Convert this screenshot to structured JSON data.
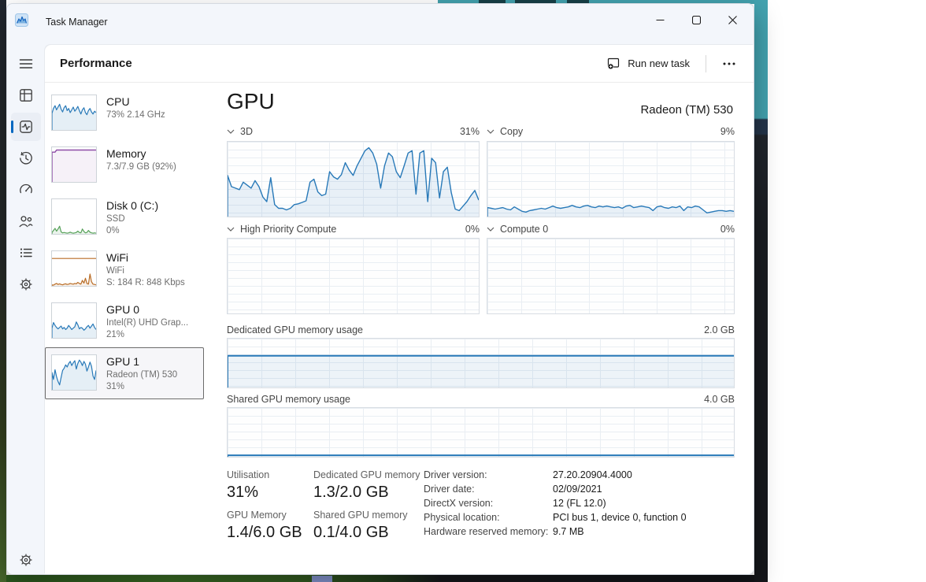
{
  "app": {
    "title": "Task Manager"
  },
  "header": {
    "title": "Performance",
    "run_new_task_label": "Run new task"
  },
  "sidebar": {
    "icons": [
      "hamburger-menu",
      "processes",
      "performance",
      "app-history",
      "startup-apps",
      "users",
      "details",
      "services",
      "settings"
    ]
  },
  "metrics": [
    {
      "title": "CPU",
      "lines": [
        "73% 2.14 GHz"
      ]
    },
    {
      "title": "Memory",
      "lines": [
        "7.3/7.9 GB (92%)"
      ]
    },
    {
      "title": "Disk 0 (C:)",
      "lines": [
        "SSD",
        "0%"
      ]
    },
    {
      "title": "WiFi",
      "lines": [
        "WiFi",
        "S: 184 R: 848 Kbps"
      ]
    },
    {
      "title": "GPU 0",
      "lines": [
        "Intel(R) UHD Grap...",
        "21%"
      ]
    },
    {
      "title": "GPU 1",
      "lines": [
        "Radeon (TM) 530",
        "31%"
      ],
      "selected": true
    }
  ],
  "gpu": {
    "title": "GPU",
    "device": "Radeon (TM) 530",
    "engine_charts": [
      {
        "label": "3D",
        "value": "31%"
      },
      {
        "label": "Copy",
        "value": "9%"
      },
      {
        "label": "High Priority Compute",
        "value": "0%"
      },
      {
        "label": "Compute 0",
        "value": "0%"
      }
    ],
    "memory_charts": [
      {
        "label": "Dedicated GPU memory usage",
        "scale": "2.0 GB"
      },
      {
        "label": "Shared GPU memory usage",
        "scale": "4.0 GB"
      }
    ],
    "stats": [
      {
        "label": "Utilisation",
        "value": "31%"
      },
      {
        "label": "Dedicated GPU memory",
        "value": "1.3/2.0 GB"
      },
      {
        "label": "GPU Memory",
        "value": "1.4/6.0 GB"
      },
      {
        "label": "Shared GPU memory",
        "value": "0.1/4.0 GB"
      }
    ],
    "details": [
      {
        "label": "Driver version:",
        "value": "27.20.20904.4000"
      },
      {
        "label": "Driver date:",
        "value": "02/09/2021"
      },
      {
        "label": "DirectX version:",
        "value": "12 (FL 12.0)"
      },
      {
        "label": "Physical location:",
        "value": "PCI bus 1, device 0, function 0"
      },
      {
        "label": "Hardware reserved memory:",
        "value": "9.7 MB"
      }
    ]
  },
  "colors": {
    "accent": "#0067c0",
    "chart_blue": "#2879b8",
    "memory_purple": "#8d4ba6",
    "disk_green": "#55a058",
    "wifi_orange": "#b96c25"
  },
  "chart_data": [
    {
      "id": "thumb-cpu",
      "type": "line",
      "ylim": [
        0,
        100
      ],
      "color": "#2879b8",
      "fill": "rgba(40,121,184,0.12)",
      "lw": 1.2,
      "values": [
        48,
        62,
        70,
        58,
        66,
        74,
        60,
        52,
        64,
        70,
        56,
        62,
        50,
        58,
        66,
        54,
        60,
        68,
        56,
        46,
        58,
        64,
        50,
        44,
        56,
        62,
        52,
        46,
        54,
        50
      ]
    },
    {
      "id": "thumb-memory",
      "type": "line",
      "ylim": [
        0,
        100
      ],
      "color": "#8d4ba6",
      "fill": "rgba(141,75,166,0.08)",
      "lw": 1.4,
      "values": [
        86,
        86,
        86,
        92,
        92,
        92,
        92,
        92,
        92,
        92,
        92,
        92,
        92,
        92,
        92,
        92,
        92,
        92,
        92,
        92,
        92,
        92,
        92,
        92,
        92,
        92,
        92,
        92,
        92,
        92
      ]
    },
    {
      "id": "thumb-disk",
      "type": "line",
      "ylim": [
        0,
        100
      ],
      "color": "#55a058",
      "fill": "rgba(85,160,88,0.12)",
      "lw": 1.2,
      "values": [
        4,
        10,
        16,
        8,
        14,
        22,
        6,
        3,
        4,
        3,
        2,
        3,
        5,
        3,
        2,
        3,
        4,
        8,
        4,
        3,
        14,
        7,
        3,
        4,
        10,
        5,
        3,
        2,
        3,
        2
      ]
    },
    {
      "id": "thumb-wifi",
      "type": "line",
      "ylim": [
        0,
        100
      ],
      "series": [
        {
          "color": "#b96c25",
          "fill": "rgba(185,108,37,0.10)",
          "lw": 1.2,
          "values": [
            3,
            2,
            5,
            7,
            4,
            6,
            4,
            3,
            5,
            6,
            4,
            5,
            7,
            6,
            5,
            7,
            6,
            10,
            7,
            5,
            16,
            8,
            22,
            7,
            5,
            34,
            12,
            5,
            4,
            3
          ]
        },
        {
          "color": "#b96c25",
          "lw": 1.2,
          "edge": false,
          "values": [
            79,
            79
          ]
        }
      ]
    },
    {
      "id": "thumb-gpu0",
      "type": "line",
      "ylim": [
        0,
        100
      ],
      "color": "#2879b8",
      "fill": "rgba(40,121,184,0.12)",
      "lw": 1.2,
      "values": [
        28,
        44,
        36,
        30,
        26,
        30,
        34,
        26,
        30,
        24,
        28,
        36,
        30,
        24,
        28,
        32,
        46,
        38,
        26,
        30,
        28,
        22,
        26,
        32,
        36,
        28,
        34,
        40,
        30,
        24
      ]
    },
    {
      "id": "thumb-gpu1",
      "type": "line",
      "ylim": [
        0,
        100
      ],
      "color": "#2879b8",
      "fill": "rgba(40,121,184,0.12)",
      "lw": 1.2,
      "values": [
        50,
        30,
        58,
        38,
        24,
        14,
        36,
        56,
        62,
        72,
        66,
        76,
        82,
        70,
        78,
        84,
        60,
        76,
        86,
        80,
        70,
        82,
        74,
        54,
        66,
        80,
        68,
        40,
        30,
        56
      ]
    },
    {
      "id": "gpu-3d",
      "type": "line",
      "title": "3D",
      "current_percent": 31,
      "ylim": [
        0,
        100
      ],
      "color": "#2879b8",
      "fill": "rgba(40,121,184,0.10)",
      "lw": 1.4,
      "values": [
        55,
        40,
        38,
        36,
        46,
        42,
        38,
        48,
        40,
        26,
        20,
        52,
        16,
        11,
        11,
        9,
        11,
        16,
        17,
        19,
        21,
        46,
        50,
        33,
        28,
        30,
        60,
        53,
        50,
        56,
        72,
        62,
        55,
        68,
        78,
        88,
        92,
        85,
        70,
        38,
        68,
        85,
        80,
        60,
        52,
        68,
        85,
        88,
        30,
        85,
        88,
        20,
        78,
        72,
        25,
        60,
        66,
        32,
        10,
        8,
        14,
        20,
        28,
        35,
        22
      ]
    },
    {
      "id": "gpu-copy",
      "type": "line",
      "title": "Copy",
      "current_percent": 9,
      "ylim": [
        0,
        100
      ],
      "color": "#2879b8",
      "fill": "rgba(40,121,184,0.10)",
      "lw": 1.4,
      "values": [
        12,
        11,
        10,
        11,
        12,
        10,
        9,
        13,
        10,
        7,
        6,
        8,
        9,
        10,
        11,
        10,
        12,
        14,
        12,
        11,
        12,
        13,
        15,
        13,
        12,
        14,
        15,
        13,
        12,
        14,
        13,
        14,
        13,
        12,
        13,
        11,
        14,
        15,
        12,
        13,
        14,
        13,
        12,
        8,
        13,
        14,
        12,
        11,
        13,
        12,
        14,
        8,
        13,
        12,
        14,
        13,
        9,
        5,
        6,
        7,
        8,
        8,
        7,
        8,
        7
      ]
    },
    {
      "id": "gpu-hpc",
      "type": "line",
      "title": "High Priority Compute",
      "current_percent": 0,
      "ylim": [
        0,
        100
      ],
      "values": []
    },
    {
      "id": "gpu-compute0",
      "type": "line",
      "title": "Compute 0",
      "current_percent": 0,
      "ylim": [
        0,
        100
      ],
      "values": []
    },
    {
      "id": "gpu-dedicated",
      "type": "line",
      "title": "Dedicated GPU memory usage",
      "ylim_label": "2.0 GB",
      "color": "#2879b8",
      "fill": "rgba(40,121,184,0.08)",
      "lw": 2,
      "values": [
        65,
        65
      ]
    },
    {
      "id": "gpu-shared",
      "type": "line",
      "title": "Shared GPU memory usage",
      "ylim_label": "4.0 GB",
      "color": "#2879b8",
      "fill": "rgba(40,121,184,0.08)",
      "lw": 2,
      "values": [
        3,
        3
      ]
    }
  ]
}
